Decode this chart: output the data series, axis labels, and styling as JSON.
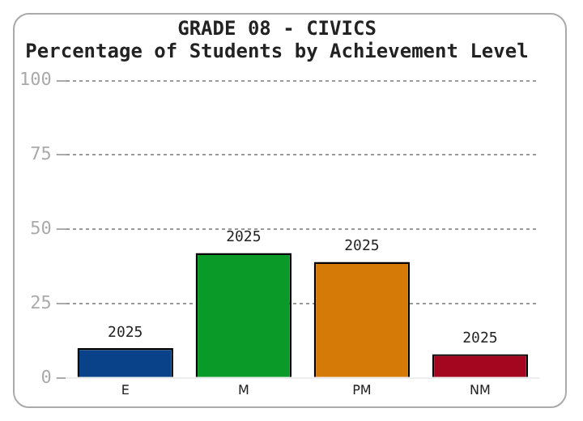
{
  "chart_data": {
    "type": "bar",
    "title": "GRADE 08 - CIVICS",
    "subtitle": "Percentage of Students by Achievement Level",
    "categories": [
      "E",
      "M",
      "PM",
      "NM"
    ],
    "series": [
      {
        "name": "2025",
        "colors": [
          "#0a428a",
          "#0a9a28",
          "#d67a07",
          "#a5061f"
        ],
        "values": [
          10,
          42,
          39,
          8
        ]
      }
    ],
    "ylim": [
      0,
      100
    ],
    "yticks": [
      0,
      25,
      50,
      75,
      100
    ],
    "grid": "y",
    "legend": false
  }
}
